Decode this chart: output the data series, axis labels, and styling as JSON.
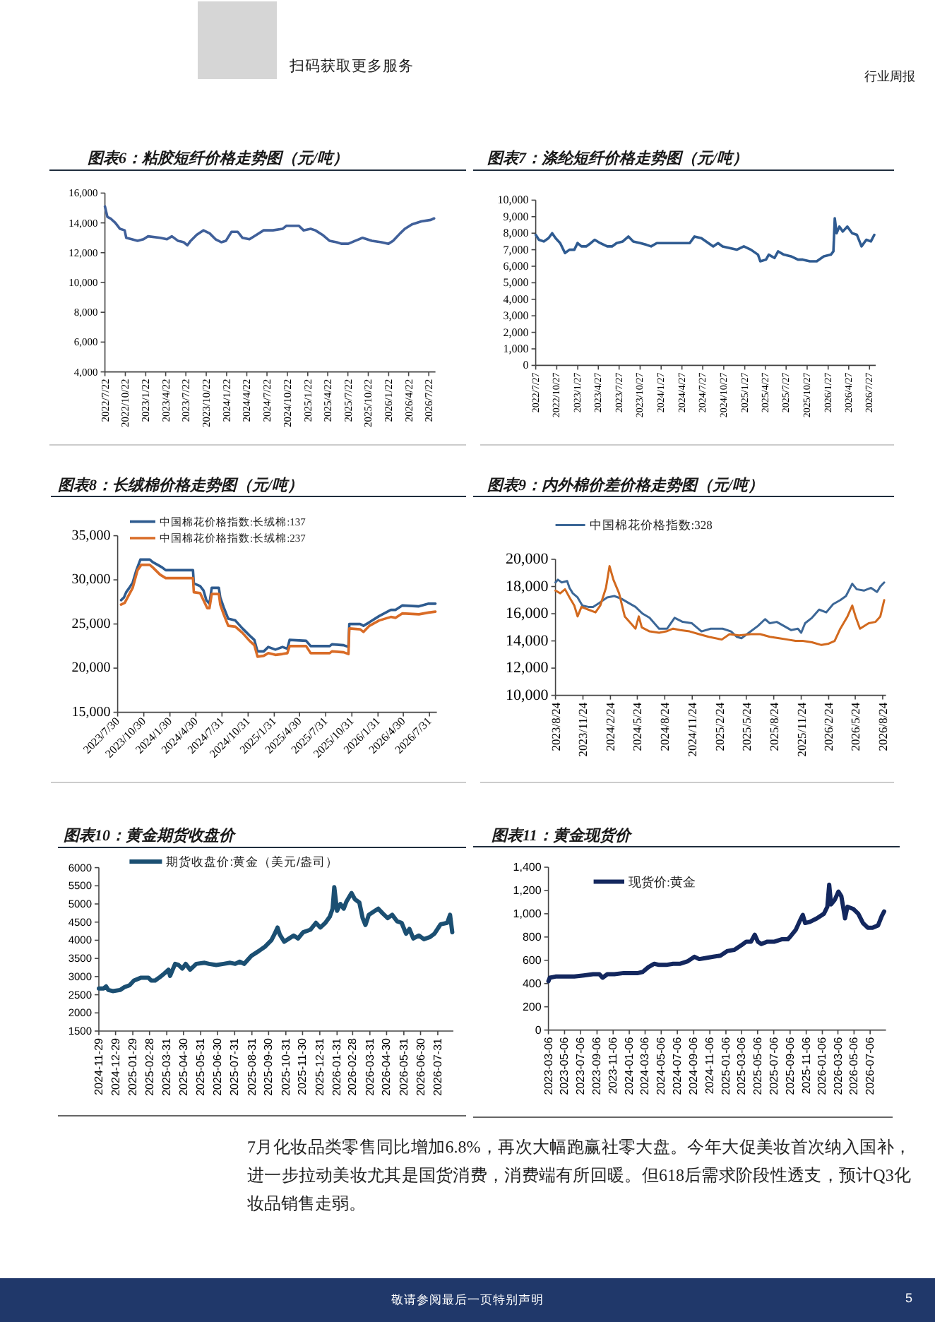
{
  "chart_data": [
    {
      "type": "other",
      "annotations": [
        "扫码获取更多服务",
        "行业周报"
      ]
    },
    {
      "type": "line",
      "title": "图表6：粘胶短纤价格走势图（元/吨）",
      "xlim": [
        "2022-07-22",
        "2026-08-21"
      ],
      "ylim": [
        4000,
        16000
      ],
      "xticks": [
        {
          "value": "2022-07-22",
          "label": "2022/7/22"
        },
        {
          "value": "2022-10-22",
          "label": "2022/10/22"
        },
        {
          "value": "2023-01-22",
          "label": "2023/1/22"
        },
        {
          "value": "2023-04-22",
          "label": "2023/4/22"
        },
        {
          "value": "2023-07-22",
          "label": "2023/7/22"
        },
        {
          "value": "2023-10-22",
          "label": "2023/10/22"
        },
        {
          "value": "2024-01-22",
          "label": "2024/1/22"
        },
        {
          "value": "2024-04-22",
          "label": "2024/4/22"
        },
        {
          "value": "2024-07-22",
          "label": "2024/7/22"
        },
        {
          "value": "2024-10-22",
          "label": "2024/10/22"
        },
        {
          "value": "2025-01-22",
          "label": "2025/1/22"
        },
        {
          "value": "2025-04-22",
          "label": "2025/4/22"
        },
        {
          "value": "2025-07-22",
          "label": "2025/7/22"
        },
        {
          "value": "2025-10-22",
          "label": "2025/10/22"
        },
        {
          "value": "2026-01-22",
          "label": "2026/1/22"
        },
        {
          "value": "2026-04-22",
          "label": "2026/4/22"
        },
        {
          "value": "2026-07-22",
          "label": "2026/7/22"
        }
      ],
      "yticks": [
        {
          "value": 4000,
          "label": "4,000"
        },
        {
          "value": 6000,
          "label": "6,000"
        },
        {
          "value": 8000,
          "label": "8,000"
        },
        {
          "value": 10000,
          "label": "10,000"
        },
        {
          "value": 12000,
          "label": "12,000"
        },
        {
          "value": 14000,
          "label": "14,000"
        },
        {
          "value": 16000,
          "label": "16,000"
        }
      ],
      "series": [
        {
          "color": "#40609a",
          "x": [
            "2022-07-22",
            "2022-08-02",
            "2022-08-16",
            "2022-09-07",
            "2022-09-28",
            "2022-10-19",
            "2022-10-26",
            "2022-11-20",
            "2022-12-16",
            "2023-01-12",
            "2023-02-02",
            "2023-03-28",
            "2023-04-28",
            "2023-05-20",
            "2023-06-16",
            "2023-07-12",
            "2023-07-29",
            "2023-08-13",
            "2023-09-09",
            "2023-10-09",
            "2023-11-06",
            "2023-12-03",
            "2023-12-29",
            "2024-01-19",
            "2024-02-13",
            "2024-03-12",
            "2024-04-02",
            "2024-05-04",
            "2024-06-05",
            "2024-07-07",
            "2024-08-18",
            "2024-09-30",
            "2024-10-17",
            "2024-12-13",
            "2025-01-03",
            "2025-02-04",
            "2025-02-25",
            "2025-03-29",
            "2025-04-30",
            "2025-06-01",
            "2025-06-22",
            "2025-07-24",
            "2025-08-25",
            "2025-09-26",
            "2025-11-07",
            "2025-12-20",
            "2026-01-21",
            "2026-02-11",
            "2026-03-15",
            "2026-04-05",
            "2026-05-07",
            "2026-06-18",
            "2026-07-31",
            "2026-08-15"
          ],
          "values": [
            15100,
            14400,
            14300,
            14000,
            13600,
            13500,
            13000,
            12900,
            12800,
            12900,
            13100,
            13000,
            12900,
            13100,
            12800,
            12700,
            12500,
            12800,
            13200,
            13500,
            13300,
            12900,
            12700,
            12800,
            13400,
            13400,
            13000,
            12900,
            13200,
            13500,
            13500,
            13600,
            13800,
            13800,
            13500,
            13600,
            13500,
            13200,
            12800,
            12700,
            12600,
            12600,
            12800,
            13000,
            12800,
            12700,
            12600,
            12800,
            13300,
            13600,
            13900,
            14100,
            14200,
            14300
          ]
        }
      ]
    },
    {
      "type": "line",
      "title": "图表7：涤纶短纤价格走势图（元/吨）",
      "xlim": [
        "2022-07-27",
        "2026-08-23"
      ],
      "ylim": [
        0,
        10000
      ],
      "xticks": [
        {
          "value": "2022-07-27",
          "label": "2022/7/27"
        },
        {
          "value": "2022-10-27",
          "label": "2022/10/27"
        },
        {
          "value": "2023-01-27",
          "label": "2023/1/27"
        },
        {
          "value": "2023-04-27",
          "label": "2023/4/27"
        },
        {
          "value": "2023-07-27",
          "label": "2023/7/27"
        },
        {
          "value": "2023-10-27",
          "label": "2023/10/27"
        },
        {
          "value": "2024-01-27",
          "label": "2024/1/27"
        },
        {
          "value": "2024-04-27",
          "label": "2024/4/27"
        },
        {
          "value": "2024-07-27",
          "label": "2024/7/27"
        },
        {
          "value": "2024-10-27",
          "label": "2024/10/27"
        },
        {
          "value": "2025-01-27",
          "label": "2025/1/27"
        },
        {
          "value": "2025-04-27",
          "label": "2025/4/27"
        },
        {
          "value": "2025-07-27",
          "label": "2025/7/27"
        },
        {
          "value": "2025-10-27",
          "label": "2025/10/27"
        },
        {
          "value": "2026-01-27",
          "label": "2026/1/27"
        },
        {
          "value": "2026-04-27",
          "label": "2026/4/27"
        },
        {
          "value": "2026-07-27",
          "label": "2026/7/27"
        }
      ],
      "yticks": [
        0,
        {
          "value": 1000,
          "label": "1,000"
        },
        {
          "value": 2000,
          "label": "2,000"
        },
        {
          "value": 3000,
          "label": "3,000"
        },
        {
          "value": 4000,
          "label": "4,000"
        },
        {
          "value": 5000,
          "label": "5,000"
        },
        {
          "value": 6000,
          "label": "6,000"
        },
        {
          "value": 7000,
          "label": "7,000"
        },
        {
          "value": 8000,
          "label": "8,000"
        },
        {
          "value": 9000,
          "label": "9,000"
        },
        {
          "value": 10000,
          "label": "10,000"
        }
      ],
      "series": [
        {
          "color": "#2f5b91",
          "x": [
            "2022-07-27",
            "2022-08-10",
            "2022-08-31",
            "2022-09-21",
            "2022-10-07",
            "2022-10-22",
            "2022-11-11",
            "2022-12-02",
            "2022-12-22",
            "2023-01-12",
            "2023-01-26",
            "2023-02-12",
            "2023-03-05",
            "2023-03-25",
            "2023-04-11",
            "2023-05-05",
            "2023-06-05",
            "2023-06-26",
            "2023-07-16",
            "2023-08-12",
            "2023-09-06",
            "2023-09-27",
            "2023-10-28",
            "2023-11-23",
            "2023-12-14",
            "2024-01-08",
            "2024-02-18",
            "2024-03-30",
            "2024-05-31",
            "2024-06-21",
            "2024-07-21",
            "2024-08-11",
            "2024-09-11",
            "2024-10-02",
            "2024-10-22",
            "2024-11-22",
            "2024-12-23",
            "2025-01-23",
            "2025-02-23",
            "2025-03-26",
            "2025-04-05",
            "2025-04-30",
            "2025-05-12",
            "2025-06-06",
            "2025-06-22",
            "2025-07-17",
            "2025-08-17",
            "2025-09-17",
            "2025-10-08",
            "2025-11-08",
            "2025-12-08",
            "2026-01-08",
            "2026-02-08",
            "2026-02-19",
            "2026-02-25",
            "2026-03-05",
            "2026-03-17",
            "2026-04-01",
            "2026-04-21",
            "2026-05-12",
            "2026-06-02",
            "2026-06-22",
            "2026-07-13",
            "2026-08-02",
            "2026-08-17"
          ],
          "values": [
            7900,
            7600,
            7500,
            7700,
            8000,
            7700,
            7400,
            6800,
            7000,
            7000,
            7400,
            7200,
            7200,
            7400,
            7600,
            7400,
            7200,
            7200,
            7400,
            7500,
            7800,
            7500,
            7400,
            7300,
            7200,
            7400,
            7400,
            7400,
            7400,
            7800,
            7700,
            7500,
            7200,
            7400,
            7200,
            7100,
            7000,
            7200,
            7000,
            6700,
            6300,
            6400,
            6700,
            6500,
            6900,
            6700,
            6600,
            6400,
            6400,
            6300,
            6300,
            6600,
            6700,
            6900,
            8900,
            8000,
            8400,
            8100,
            8400,
            8000,
            7900,
            7200,
            7600,
            7500,
            7900
          ]
        }
      ]
    },
    {
      "type": "line",
      "title": "图表8：长绒棉价格走势图（元/吨）",
      "xlim": [
        "2023-07-30",
        "2026-08-26"
      ],
      "ylim": [
        15000,
        35000
      ],
      "legend": "top left",
      "xticks": [
        {
          "value": "2023-07-30",
          "label": "2023/7/30"
        },
        {
          "value": "2023-10-30",
          "label": "2023/10/30"
        },
        {
          "value": "2024-01-30",
          "label": "2024/1/30"
        },
        {
          "value": "2024-04-30",
          "label": "2024/4/30"
        },
        {
          "value": "2024-07-31",
          "label": "2024/7/31"
        },
        {
          "value": "2024-10-31",
          "label": "2024/10/31"
        },
        {
          "value": "2025-01-31",
          "label": "2025/1/31"
        },
        {
          "value": "2025-04-30",
          "label": "2025/4/30"
        },
        {
          "value": "2025-07-31",
          "label": "2025/7/31"
        },
        {
          "value": "2025-10-31",
          "label": "2025/10/31"
        },
        {
          "value": "2026-01-31",
          "label": "2026/1/31"
        },
        {
          "value": "2026-04-30",
          "label": "2026/4/30"
        },
        {
          "value": "2026-07-31",
          "label": "2026/7/31"
        }
      ],
      "yticks": [
        {
          "value": 15000,
          "label": "15,000"
        },
        {
          "value": 20000,
          "label": "20,000"
        },
        {
          "value": 25000,
          "label": "25,000"
        },
        {
          "value": 30000,
          "label": "30,000"
        },
        {
          "value": 35000,
          "label": "35,000"
        }
      ],
      "series": [
        {
          "name": "中国棉花价格指数:长绒棉:137",
          "color": "#2e5b8f",
          "x": [
            "2023-08-11",
            "2023-08-21",
            "2023-08-29",
            "2023-09-09",
            "2023-09-21",
            "2023-10-04",
            "2023-10-18",
            "2023-11-20",
            "2023-12-01",
            "2023-12-18",
            "2024-01-03",
            "2024-01-15",
            "2024-04-20",
            "2024-04-23",
            "2024-05-15",
            "2024-05-27",
            "2024-06-06",
            "2024-06-17",
            "2024-06-25",
            "2024-07-20",
            "2024-07-25",
            "2024-08-06",
            "2024-08-22",
            "2024-09-16",
            "2024-10-11",
            "2024-11-05",
            "2024-11-22",
            "2024-12-03",
            "2024-12-25",
            "2025-01-10",
            "2025-02-04",
            "2025-03-01",
            "2025-03-18",
            "2025-03-26",
            "2025-05-23",
            "2025-06-08",
            "2025-08-14",
            "2025-08-22",
            "2025-10-02",
            "2025-10-19",
            "2025-10-22",
            "2025-11-29",
            "2025-12-11",
            "2026-01-01",
            "2026-02-04",
            "2026-03-17",
            "2026-04-03",
            "2026-04-27",
            "2026-06-24",
            "2026-07-28",
            "2026-08-21"
          ],
          "values": [
            27700,
            28000,
            28600,
            29100,
            29700,
            31100,
            32300,
            32300,
            32000,
            31700,
            31400,
            31100,
            31100,
            29600,
            29300,
            28800,
            27700,
            27300,
            29100,
            29100,
            28000,
            26900,
            25600,
            25400,
            24500,
            23700,
            23200,
            21900,
            21900,
            22400,
            22100,
            22400,
            22200,
            23200,
            23100,
            22500,
            22500,
            22700,
            22600,
            22400,
            25000,
            25000,
            24800,
            25200,
            25900,
            26600,
            26600,
            27100,
            27000,
            27300,
            27300
          ]
        },
        {
          "name": "中国棉花价格指数:长绒棉:237",
          "color": "#d96c27",
          "x": [
            "2023-08-11",
            "2023-08-24",
            "2023-09-06",
            "2023-09-21",
            "2023-10-08",
            "2023-10-21",
            "2023-11-20",
            "2023-12-01",
            "2023-12-26",
            "2024-01-15",
            "2024-04-20",
            "2024-04-23",
            "2024-05-15",
            "2024-05-27",
            "2024-06-09",
            "2024-06-17",
            "2024-06-25",
            "2024-07-20",
            "2024-07-25",
            "2024-08-06",
            "2024-08-22",
            "2024-09-16",
            "2024-10-11",
            "2024-11-05",
            "2024-11-22",
            "2024-12-03",
            "2024-12-25",
            "2025-01-10",
            "2025-02-04",
            "2025-03-01",
            "2025-03-18",
            "2025-03-26",
            "2025-05-23",
            "2025-06-08",
            "2025-08-14",
            "2025-08-22",
            "2025-10-02",
            "2025-10-19",
            "2025-10-22",
            "2025-11-29",
            "2025-12-11",
            "2026-01-01",
            "2026-02-04",
            "2026-03-17",
            "2026-04-03",
            "2026-04-27",
            "2026-06-24",
            "2026-07-28",
            "2026-08-21"
          ],
          "values": [
            27200,
            27400,
            28200,
            29100,
            31100,
            31700,
            31700,
            31400,
            30600,
            30200,
            30200,
            28600,
            28500,
            27700,
            26800,
            26800,
            28400,
            28400,
            27200,
            26100,
            24800,
            24700,
            24000,
            23100,
            22600,
            21300,
            21400,
            21700,
            21500,
            21600,
            21700,
            22500,
            22500,
            21700,
            21700,
            21900,
            21800,
            21600,
            24500,
            24400,
            24100,
            24800,
            25400,
            25800,
            25700,
            26200,
            26100,
            26300,
            26400
          ]
        }
      ]
    },
    {
      "type": "line",
      "title": "图表9：内外棉价差价格走势图（元/吨）",
      "xlim": [
        "2023-08-24",
        "2026-09-04"
      ],
      "ylim": [
        10000,
        20000
      ],
      "legend": "top left",
      "xticks": [
        {
          "value": "2023-08-24",
          "label": "2023/8/24"
        },
        {
          "value": "2023-11-24",
          "label": "2023/11/24"
        },
        {
          "value": "2024-02-24",
          "label": "2024/2/24"
        },
        {
          "value": "2024-05-24",
          "label": "2024/5/24"
        },
        {
          "value": "2024-08-24",
          "label": "2024/8/24"
        },
        {
          "value": "2024-11-24",
          "label": "2024/11/24"
        },
        {
          "value": "2025-02-24",
          "label": "2025/2/24"
        },
        {
          "value": "2025-05-24",
          "label": "2025/5/24"
        },
        {
          "value": "2025-08-24",
          "label": "2025/8/24"
        },
        {
          "value": "2025-11-24",
          "label": "2025/11/24"
        },
        {
          "value": "2026-02-24",
          "label": "2026/2/24"
        },
        {
          "value": "2026-05-24",
          "label": "2026/5/24"
        },
        {
          "value": "2026-08-24",
          "label": "2026/8/24"
        }
      ],
      "yticks": [
        {
          "value": 10000,
          "label": "10,000"
        },
        {
          "value": 12000,
          "label": "12,000"
        },
        {
          "value": 14000,
          "label": "14,000"
        },
        {
          "value": 16000,
          "label": "16,000"
        },
        {
          "value": 18000,
          "label": "18,000"
        },
        {
          "value": 20000,
          "label": "20,000"
        }
      ],
      "series": [
        {
          "name": "中国棉花价格指数:328",
          "color": "#3c6797",
          "x": [
            "2023-08-24",
            "2023-09-01",
            "2023-09-14",
            "2023-10-02",
            "2023-10-10",
            "2023-10-21",
            "2023-11-06",
            "2023-11-22",
            "2023-12-12",
            "2023-12-28",
            "2024-01-18",
            "2024-02-13",
            "2024-03-08",
            "2024-04-01",
            "2024-04-24",
            "2024-05-18",
            "2024-06-11",
            "2024-07-04",
            "2024-08-05",
            "2024-09-01",
            "2024-09-26",
            "2024-10-23",
            "2024-11-23",
            "2024-12-25",
            "2025-01-25",
            "2025-03-06",
            "2025-04-03",
            "2025-04-22",
            "2025-05-08",
            "2025-06-08",
            "2025-07-02",
            "2025-07-26",
            "2025-08-11",
            "2025-09-03",
            "2025-09-27",
            "2025-10-21",
            "2025-11-13",
            "2025-11-24",
            "2025-12-07",
            "2025-12-30",
            "2026-01-23",
            "2026-02-16",
            "2026-03-11",
            "2026-04-04",
            "2026-04-23",
            "2026-05-14",
            "2026-05-29",
            "2026-06-22",
            "2026-07-16",
            "2026-08-05",
            "2026-08-16",
            "2026-08-29"
          ],
          "values": [
            18300,
            18500,
            18300,
            18400,
            17900,
            17500,
            17200,
            16600,
            16500,
            16500,
            16800,
            17200,
            17300,
            17100,
            16800,
            16500,
            16000,
            15700,
            14900,
            14900,
            15700,
            15400,
            15300,
            14700,
            14900,
            14900,
            14700,
            14300,
            14200,
            14700,
            15100,
            15600,
            15300,
            15400,
            15100,
            14800,
            14900,
            14600,
            15300,
            15700,
            16300,
            16100,
            16700,
            17000,
            17300,
            18200,
            17800,
            17700,
            17900,
            17600,
            18000,
            18300
          ]
        },
        {
          "color": "#d2691e",
          "x": [
            "2023-08-24",
            "2023-09-09",
            "2023-09-25",
            "2023-10-10",
            "2023-10-26",
            "2023-11-06",
            "2023-11-19",
            "2023-12-12",
            "2024-01-05",
            "2024-01-21",
            "2024-02-09",
            "2024-02-21",
            "2024-03-05",
            "2024-03-24",
            "2024-04-12",
            "2024-05-02",
            "2024-05-18",
            "2024-05-29",
            "2024-06-08",
            "2024-07-04",
            "2024-08-05",
            "2024-08-29",
            "2024-09-21",
            "2024-10-15",
            "2024-11-15",
            "2024-12-17",
            "2025-01-18",
            "2025-03-03",
            "2025-03-29",
            "2025-04-30",
            "2025-06-08",
            "2025-07-10",
            "2025-08-11",
            "2025-09-11",
            "2025-10-09",
            "2025-11-05",
            "2025-11-29",
            "2025-12-30",
            "2026-01-31",
            "2026-02-24",
            "2026-03-16",
            "2026-04-04",
            "2026-04-28",
            "2026-05-14",
            "2026-05-25",
            "2026-06-09",
            "2026-07-08",
            "2026-07-31",
            "2026-08-16",
            "2026-08-29"
          ],
          "values": [
            17700,
            17500,
            17800,
            17200,
            16600,
            15800,
            16500,
            16300,
            16100,
            16600,
            17900,
            19500,
            18500,
            17500,
            15800,
            15300,
            14900,
            15800,
            15000,
            14700,
            14600,
            14700,
            14900,
            14800,
            14700,
            14500,
            14300,
            14100,
            14500,
            14400,
            14500,
            14500,
            14300,
            14200,
            14100,
            14000,
            14000,
            13900,
            13700,
            13800,
            14000,
            14900,
            15800,
            16600,
            15800,
            14900,
            15300,
            15400,
            15800,
            17000
          ]
        }
      ]
    },
    {
      "type": "line",
      "title": "图表10：黄金期货收盘价",
      "xlim": [
        "2024-11-29",
        "2026-08-28"
      ],
      "ylim": [
        1500,
        6000
      ],
      "legend": "top left",
      "xticks": [
        "2024-11-29",
        "2024-12-29",
        "2025-01-29",
        "2025-02-28",
        "2025-03-31",
        "2025-04-30",
        "2025-05-31",
        "2025-06-30",
        "2025-07-31",
        "2025-08-31",
        "2025-09-30",
        "2025-10-31",
        "2025-11-30",
        "2025-12-31",
        "2026-01-31",
        "2026-02-28",
        "2026-03-31",
        "2026-04-30",
        "2026-05-31",
        "2026-06-30",
        "2026-07-31"
      ],
      "yticks": [
        1500,
        2000,
        2500,
        3000,
        3500,
        4000,
        4500,
        5000,
        5500,
        6000
      ],
      "series": [
        {
          "name": "期货收盘价:黄金（美元/盎司）",
          "color": "#1b4f72",
          "x": [
            "2024-11-29",
            "2024-12-07",
            "2024-12-12",
            "2024-12-16",
            "2024-12-24",
            "2025-01-06",
            "2025-01-14",
            "2025-01-23",
            "2025-01-31",
            "2025-02-13",
            "2025-02-26",
            "2025-03-03",
            "2025-03-10",
            "2025-03-19",
            "2025-03-27",
            "2025-04-03",
            "2025-04-06",
            "2025-04-15",
            "2025-04-21",
            "2025-04-28",
            "2025-05-04",
            "2025-05-12",
            "2025-05-23",
            "2025-06-07",
            "2025-06-15",
            "2025-06-28",
            "2025-07-11",
            "2025-07-23",
            "2025-08-01",
            "2025-08-09",
            "2025-08-17",
            "2025-08-30",
            "2025-09-12",
            "2025-09-24",
            "2025-10-05",
            "2025-10-11",
            "2025-10-16",
            "2025-10-20",
            "2025-10-28",
            "2025-11-06",
            "2025-11-14",
            "2025-11-22",
            "2025-12-01",
            "2025-12-14",
            "2025-12-24",
            "2026-01-01",
            "2026-01-10",
            "2026-01-18",
            "2026-01-23",
            "2026-01-26",
            "2026-01-31",
            "2026-02-06",
            "2026-02-12",
            "2026-02-17",
            "2026-02-26",
            "2026-03-04",
            "2026-03-12",
            "2026-03-18",
            "2026-03-23",
            "2026-03-29",
            "2026-04-09",
            "2026-04-15",
            "2026-04-23",
            "2026-05-02",
            "2026-05-10",
            "2026-05-19",
            "2026-05-27",
            "2026-06-04",
            "2026-06-10",
            "2026-06-17",
            "2026-06-27",
            "2026-07-06",
            "2026-07-17",
            "2026-07-25",
            "2026-08-05",
            "2026-08-17",
            "2026-08-22",
            "2026-08-26"
          ],
          "values": [
            2670,
            2670,
            2730,
            2630,
            2600,
            2630,
            2710,
            2760,
            2890,
            2970,
            2970,
            2890,
            2890,
            2990,
            3090,
            3190,
            3020,
            3350,
            3320,
            3220,
            3350,
            3190,
            3350,
            3380,
            3350,
            3320,
            3350,
            3380,
            3350,
            3410,
            3350,
            3570,
            3700,
            3830,
            4000,
            4180,
            4350,
            4160,
            3960,
            4050,
            4130,
            4050,
            4220,
            4290,
            4480,
            4350,
            4480,
            4650,
            4870,
            5460,
            4810,
            5000,
            4870,
            5070,
            5300,
            5130,
            5040,
            4610,
            4420,
            4700,
            4810,
            4870,
            4740,
            4610,
            4700,
            4520,
            4480,
            4180,
            4310,
            4050,
            4130,
            4030,
            4090,
            4180,
            4440,
            4480,
            4700,
            4220
          ]
        }
      ]
    },
    {
      "type": "line",
      "title": "图表11：黄金现货价",
      "xlim": [
        "2023-03-06",
        "2026-09-04"
      ],
      "ylim": [
        0,
        1400
      ],
      "legend": "top left",
      "xticks": [
        "2023-03-06",
        "2023-05-06",
        "2023-07-06",
        "2023-09-06",
        "2023-11-06",
        "2024-01-06",
        "2024-03-06",
        "2024-05-06",
        "2024-07-06",
        "2024-09-06",
        "2024-11-06",
        "2025-01-06",
        "2025-03-06",
        "2025-05-06",
        "2025-07-06",
        "2025-09-06",
        "2025-11-06",
        "2026-01-06",
        "2026-03-06",
        "2026-05-06",
        "2026-07-06"
      ],
      "yticks": [
        0,
        200,
        400,
        600,
        800,
        {
          "value": 1000,
          "label": "1,000"
        },
        {
          "value": 1200,
          "label": "1,200"
        },
        {
          "value": 1400,
          "label": "1,400"
        }
      ],
      "series": [
        {
          "name": "现货价:黄金",
          "color": "#13275e",
          "x": [
            "2023-03-06",
            "2023-03-11",
            "2023-04-02",
            "2023-05-07",
            "2023-06-12",
            "2023-07-18",
            "2023-08-22",
            "2023-09-15",
            "2023-09-27",
            "2023-10-15",
            "2023-11-11",
            "2023-12-16",
            "2024-02-08",
            "2024-02-26",
            "2024-03-18",
            "2024-04-10",
            "2024-04-28",
            "2024-05-25",
            "2024-06-20",
            "2024-07-17",
            "2024-08-13",
            "2024-09-09",
            "2024-09-27",
            "2024-10-23",
            "2024-11-19",
            "2024-12-16",
            "2025-01-12",
            "2025-02-07",
            "2025-03-06",
            "2025-03-24",
            "2025-04-11",
            "2025-04-25",
            "2025-05-07",
            "2025-05-20",
            "2025-06-12",
            "2025-07-09",
            "2025-08-05",
            "2025-08-28",
            "2025-09-09",
            "2025-09-27",
            "2025-10-15",
            "2025-10-24",
            "2025-11-02",
            "2025-11-20",
            "2025-12-16",
            "2026-01-12",
            "2026-01-25",
            "2026-02-01",
            "2026-02-08",
            "2026-02-22",
            "2026-03-08",
            "2026-03-19",
            "2026-04-02",
            "2026-04-11",
            "2026-05-04",
            "2026-05-22",
            "2026-06-09",
            "2026-06-27",
            "2026-07-15",
            "2026-08-05",
            "2026-08-19",
            "2026-08-28"
          ],
          "values": [
            420,
            450,
            460,
            460,
            460,
            470,
            480,
            480,
            450,
            480,
            480,
            490,
            490,
            500,
            540,
            570,
            560,
            560,
            570,
            570,
            590,
            630,
            610,
            620,
            630,
            640,
            680,
            690,
            730,
            760,
            760,
            820,
            760,
            740,
            760,
            760,
            780,
            780,
            810,
            860,
            950,
            990,
            920,
            930,
            960,
            1000,
            1060,
            1250,
            1080,
            1120,
            1190,
            1150,
            960,
            1060,
            1040,
            1000,
            920,
            880,
            880,
            900,
            980,
            1020
          ]
        }
      ]
    },
    {
      "type": "other",
      "annotations": [
        "7月化妆品类零售同比增加6.8%，再次大幅跑赢社零大盘。今年大促美妆首次纳入国补，进一步拉动美妆尤其是国货消费，消费端有所回暖。但618后需求阶段性透支，预计Q3化妆品销售走弱。",
        "敬请参阅最后一页特别声明",
        "5"
      ]
    }
  ]
}
